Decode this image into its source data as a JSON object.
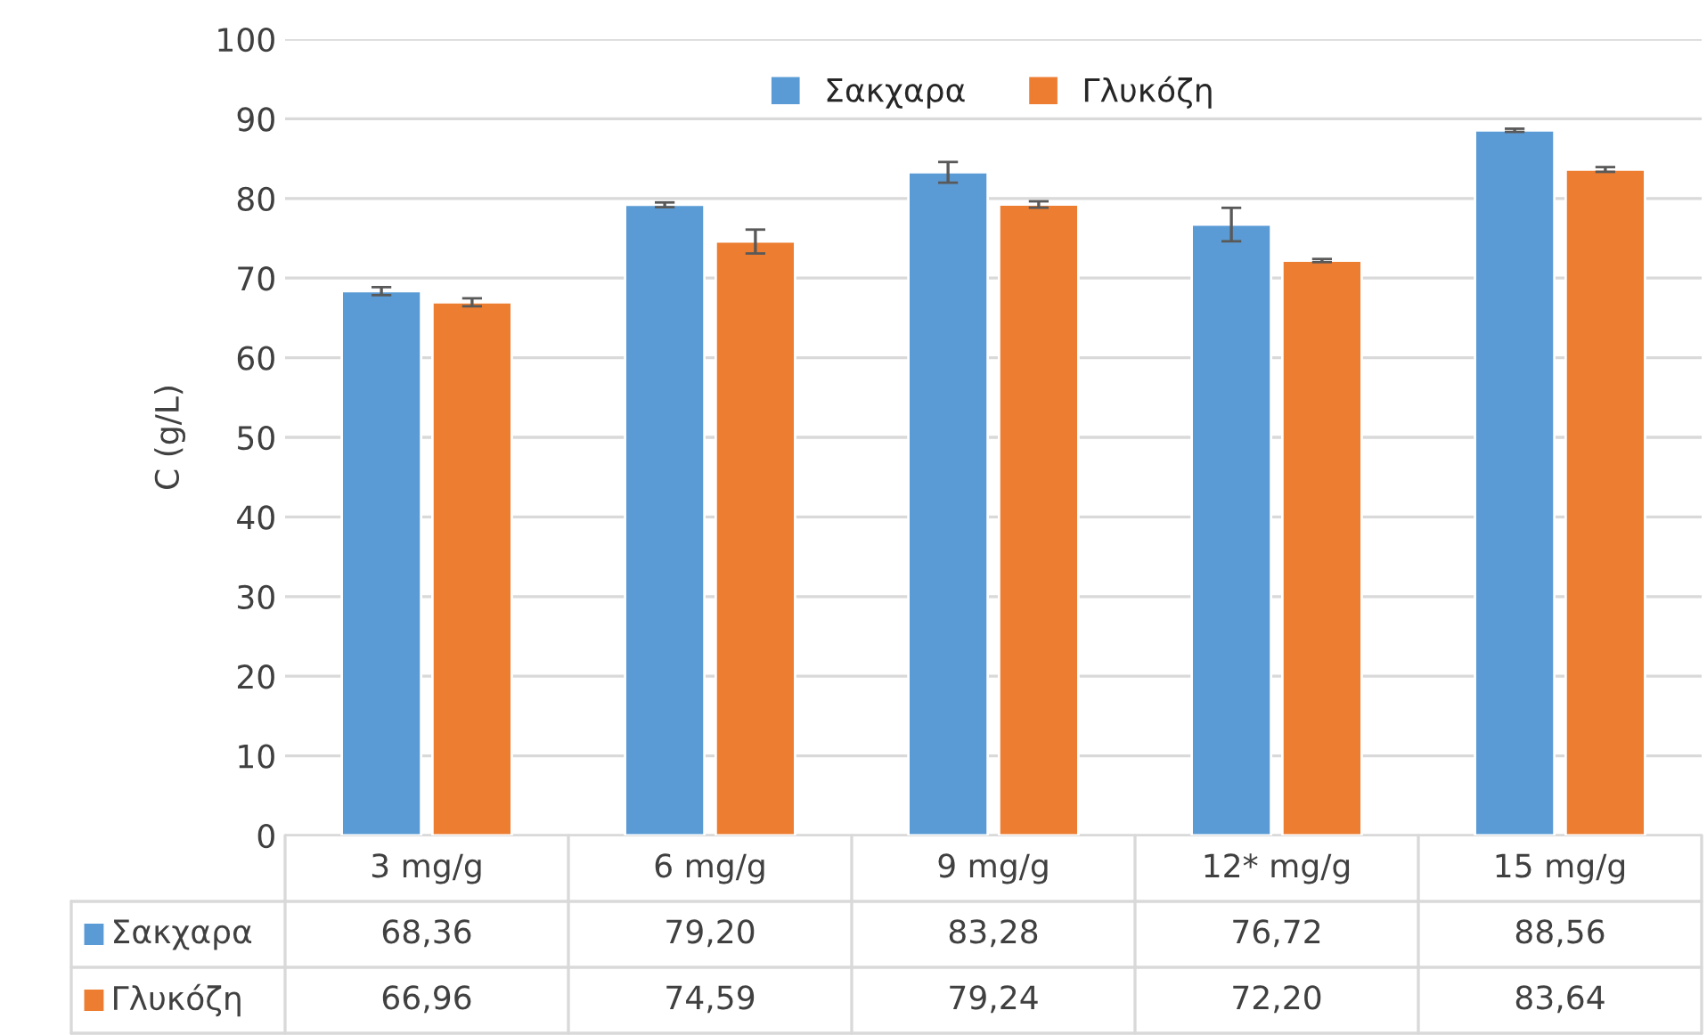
{
  "chart_data": {
    "type": "bar",
    "ylabel": "C (g/L)",
    "categories": [
      "3 mg/g",
      "6 mg/g",
      "9 mg/g",
      "12* mg/g",
      "15 mg/g"
    ],
    "series": [
      {
        "name": "Σακχαρα",
        "color": "#5b9bd5",
        "values": [
          68.36,
          79.2,
          83.28,
          76.72,
          88.56
        ],
        "errors": [
          0.5,
          0.3,
          1.3,
          2.1,
          0.2
        ],
        "value_labels": [
          "68,36",
          "79,20",
          "83,28",
          "76,72",
          "88,56"
        ]
      },
      {
        "name": "Γλυκόζη",
        "color": "#ed7d31",
        "values": [
          66.96,
          74.59,
          79.24,
          72.2,
          83.64
        ],
        "errors": [
          0.5,
          1.5,
          0.4,
          0.2,
          0.3
        ],
        "value_labels": [
          "66,96",
          "74,59",
          "79,24",
          "72,20",
          "83,64"
        ]
      }
    ],
    "ylim": [
      0,
      100
    ],
    "yticks": [
      0,
      10,
      20,
      30,
      40,
      50,
      60,
      70,
      80,
      90,
      100
    ],
    "grid": "y",
    "legend": "top"
  }
}
